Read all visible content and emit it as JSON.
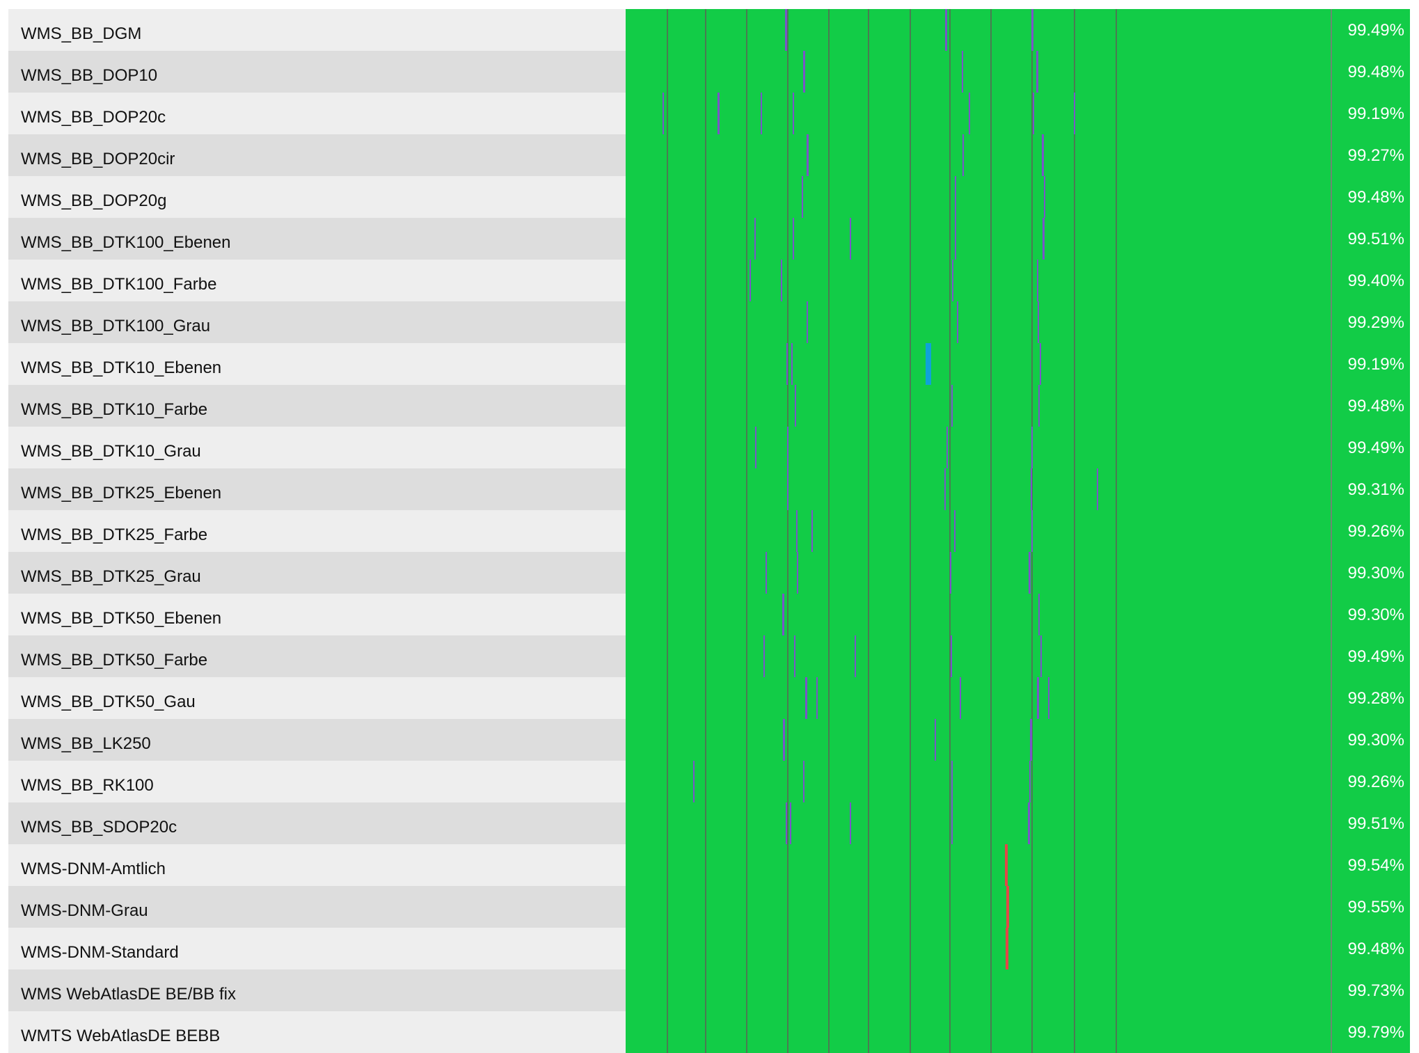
{
  "colors": {
    "up": "#12cc47",
    "outage": "#7a55c8",
    "maintenance": "#e14848",
    "partial": "#0fa2d8",
    "grid": "#4b7a52"
  },
  "grid_days": [
    0.058,
    0.113,
    0.171,
    0.229,
    0.287,
    0.344,
    0.403,
    0.459,
    0.517,
    0.576,
    0.636,
    0.695
  ],
  "services": [
    {
      "name": "WMS_BB_DGM",
      "uptime": "99.49%",
      "marks": [
        {
          "t": 0.226,
          "w": 0.003,
          "k": "outage"
        },
        {
          "t": 0.453,
          "w": 0.003,
          "k": "outage"
        },
        {
          "t": 0.576,
          "w": 0.003,
          "k": "outage"
        }
      ]
    },
    {
      "name": "WMS_BB_DOP10",
      "uptime": "99.48%",
      "marks": [
        {
          "t": 0.252,
          "w": 0.003,
          "k": "outage"
        },
        {
          "t": 0.477,
          "w": 0.001,
          "k": "outage"
        },
        {
          "t": 0.582,
          "w": 0.003,
          "k": "outage"
        }
      ]
    },
    {
      "name": "WMS_BB_DOP20c",
      "uptime": "99.19%",
      "marks": [
        {
          "t": 0.052,
          "w": 0.001,
          "k": "outage"
        },
        {
          "t": 0.13,
          "w": 0.003,
          "k": "outage"
        },
        {
          "t": 0.192,
          "w": 0.001,
          "k": "outage"
        },
        {
          "t": 0.237,
          "w": 0.002,
          "k": "outage"
        },
        {
          "t": 0.487,
          "w": 0.002,
          "k": "outage"
        },
        {
          "t": 0.577,
          "w": 0.002,
          "k": "outage"
        },
        {
          "t": 0.636,
          "w": 0.001,
          "k": "outage"
        }
      ]
    },
    {
      "name": "WMS_BB_DOP20cir",
      "uptime": "99.27%",
      "marks": [
        {
          "t": 0.257,
          "w": 0.003,
          "k": "outage"
        },
        {
          "t": 0.478,
          "w": 0.001,
          "k": "outage"
        },
        {
          "t": 0.59,
          "w": 0.003,
          "k": "outage"
        }
      ]
    },
    {
      "name": "WMS_BB_DOP20g",
      "uptime": "99.48%",
      "marks": [
        {
          "t": 0.25,
          "w": 0.002,
          "k": "outage"
        },
        {
          "t": 0.467,
          "w": 0.001,
          "k": "outage"
        },
        {
          "t": 0.593,
          "w": 0.002,
          "k": "outage"
        }
      ]
    },
    {
      "name": "WMS_BB_DTK100_Ebenen",
      "uptime": "99.51%",
      "marks": [
        {
          "t": 0.183,
          "w": 0.001,
          "k": "outage"
        },
        {
          "t": 0.237,
          "w": 0.001,
          "k": "outage"
        },
        {
          "t": 0.318,
          "w": 0.001,
          "k": "outage"
        },
        {
          "t": 0.467,
          "w": 0.002,
          "k": "outage"
        },
        {
          "t": 0.591,
          "w": 0.003,
          "k": "outage"
        }
      ]
    },
    {
      "name": "WMS_BB_DTK100_Farbe",
      "uptime": "99.40%",
      "marks": [
        {
          "t": 0.176,
          "w": 0.001,
          "k": "outage"
        },
        {
          "t": 0.22,
          "w": 0.001,
          "k": "outage"
        },
        {
          "t": 0.463,
          "w": 0.002,
          "k": "outage"
        },
        {
          "t": 0.583,
          "w": 0.002,
          "k": "outage"
        }
      ]
    },
    {
      "name": "WMS_BB_DTK100_Grau",
      "uptime": "99.29%",
      "marks": [
        {
          "t": 0.257,
          "w": 0.002,
          "k": "outage"
        },
        {
          "t": 0.47,
          "w": 0.002,
          "k": "outage"
        },
        {
          "t": 0.584,
          "w": 0.002,
          "k": "outage"
        }
      ]
    },
    {
      "name": "WMS_BB_DTK10_Ebenen",
      "uptime": "99.19%",
      "marks": [
        {
          "t": 0.228,
          "w": 0.001,
          "k": "outage"
        },
        {
          "t": 0.235,
          "w": 0.001,
          "k": "outage"
        },
        {
          "t": 0.425,
          "w": 0.008,
          "k": "partial"
        },
        {
          "t": 0.587,
          "w": 0.001,
          "k": "outage"
        }
      ]
    },
    {
      "name": "WMS_BB_DTK10_Farbe",
      "uptime": "99.48%",
      "marks": [
        {
          "t": 0.24,
          "w": 0.002,
          "k": "outage"
        },
        {
          "t": 0.462,
          "w": 0.001,
          "k": "outage"
        },
        {
          "t": 0.585,
          "w": 0.001,
          "k": "outage"
        }
      ]
    },
    {
      "name": "WMS_BB_DTK10_Grau",
      "uptime": "99.49%",
      "marks": [
        {
          "t": 0.184,
          "w": 0.001,
          "k": "outage"
        },
        {
          "t": 0.229,
          "w": 0.002,
          "k": "outage"
        },
        {
          "t": 0.455,
          "w": 0.002,
          "k": "outage"
        },
        {
          "t": 0.576,
          "w": 0.002,
          "k": "outage"
        }
      ]
    },
    {
      "name": "WMS_BB_DTK25_Ebenen",
      "uptime": "99.31%",
      "marks": [
        {
          "t": 0.229,
          "w": 0.002,
          "k": "outage"
        },
        {
          "t": 0.452,
          "w": 0.001,
          "k": "outage"
        },
        {
          "t": 0.575,
          "w": 0.002,
          "k": "outage"
        },
        {
          "t": 0.668,
          "w": 0.001,
          "k": "outage"
        }
      ]
    },
    {
      "name": "WMS_BB_DTK25_Farbe",
      "uptime": "99.26%",
      "marks": [
        {
          "t": 0.242,
          "w": 0.002,
          "k": "outage"
        },
        {
          "t": 0.264,
          "w": 0.001,
          "k": "outage"
        },
        {
          "t": 0.466,
          "w": 0.001,
          "k": "outage"
        },
        {
          "t": 0.576,
          "w": 0.001,
          "k": "outage"
        }
      ]
    },
    {
      "name": "WMS_BB_DTK25_Grau",
      "uptime": "99.30%",
      "marks": [
        {
          "t": 0.198,
          "w": 0.001,
          "k": "outage"
        },
        {
          "t": 0.243,
          "w": 0.002,
          "k": "outage"
        },
        {
          "t": 0.46,
          "w": 0.002,
          "k": "outage"
        },
        {
          "t": 0.572,
          "w": 0.003,
          "k": "outage"
        }
      ]
    },
    {
      "name": "WMS_BB_DTK50_Ebenen",
      "uptime": "99.30%",
      "marks": [
        {
          "t": 0.222,
          "w": 0.003,
          "k": "outage"
        },
        {
          "t": 0.585,
          "w": 0.002,
          "k": "outage"
        }
      ]
    },
    {
      "name": "WMS_BB_DTK50_Farbe",
      "uptime": "99.49%",
      "marks": [
        {
          "t": 0.195,
          "w": 0.001,
          "k": "outage"
        },
        {
          "t": 0.239,
          "w": 0.002,
          "k": "outage"
        },
        {
          "t": 0.325,
          "w": 0.001,
          "k": "outage"
        },
        {
          "t": 0.461,
          "w": 0.001,
          "k": "outage"
        },
        {
          "t": 0.588,
          "w": 0.002,
          "k": "outage"
        }
      ]
    },
    {
      "name": "WMS_BB_DTK50_Gau",
      "uptime": "99.28%",
      "marks": [
        {
          "t": 0.255,
          "w": 0.003,
          "k": "outage"
        },
        {
          "t": 0.27,
          "w": 0.001,
          "k": "outage"
        },
        {
          "t": 0.474,
          "w": 0.001,
          "k": "outage"
        },
        {
          "t": 0.583,
          "w": 0.003,
          "k": "outage"
        },
        {
          "t": 0.599,
          "w": 0.001,
          "k": "outage"
        }
      ]
    },
    {
      "name": "WMS_BB_LK250",
      "uptime": "99.30%",
      "marks": [
        {
          "t": 0.223,
          "w": 0.003,
          "k": "outage"
        },
        {
          "t": 0.438,
          "w": 0.001,
          "k": "outage"
        },
        {
          "t": 0.574,
          "w": 0.003,
          "k": "outage"
        }
      ]
    },
    {
      "name": "WMS_BB_RK100",
      "uptime": "99.26%",
      "marks": [
        {
          "t": 0.096,
          "w": 0.001,
          "k": "outage"
        },
        {
          "t": 0.252,
          "w": 0.002,
          "k": "outage"
        },
        {
          "t": 0.462,
          "w": 0.002,
          "k": "outage"
        },
        {
          "t": 0.573,
          "w": 0.002,
          "k": "outage"
        }
      ]
    },
    {
      "name": "WMS_BB_SDOP20c",
      "uptime": "99.51%",
      "marks": [
        {
          "t": 0.227,
          "w": 0.001,
          "k": "outage"
        },
        {
          "t": 0.233,
          "w": 0.001,
          "k": "outage"
        },
        {
          "t": 0.318,
          "w": 0.001,
          "k": "outage"
        },
        {
          "t": 0.462,
          "w": 0.002,
          "k": "outage"
        },
        {
          "t": 0.571,
          "w": 0.003,
          "k": "outage"
        }
      ]
    },
    {
      "name": "WMS-DNM-Amtlich",
      "uptime": "99.54%",
      "marks": [
        {
          "t": 0.538,
          "w": 0.004,
          "k": "maintenance"
        }
      ]
    },
    {
      "name": "WMS-DNM-Grau",
      "uptime": "99.55%",
      "marks": [
        {
          "t": 0.54,
          "w": 0.004,
          "k": "maintenance"
        }
      ]
    },
    {
      "name": "WMS-DNM-Standard",
      "uptime": "99.48%",
      "marks": [
        {
          "t": 0.539,
          "w": 0.004,
          "k": "maintenance"
        }
      ]
    },
    {
      "name": "WMS WebAtlasDE BE/BB fix",
      "uptime": "99.73%",
      "marks": []
    },
    {
      "name": "WMTS WebAtlasDE BEBB",
      "uptime": "99.79%",
      "marks": []
    }
  ]
}
